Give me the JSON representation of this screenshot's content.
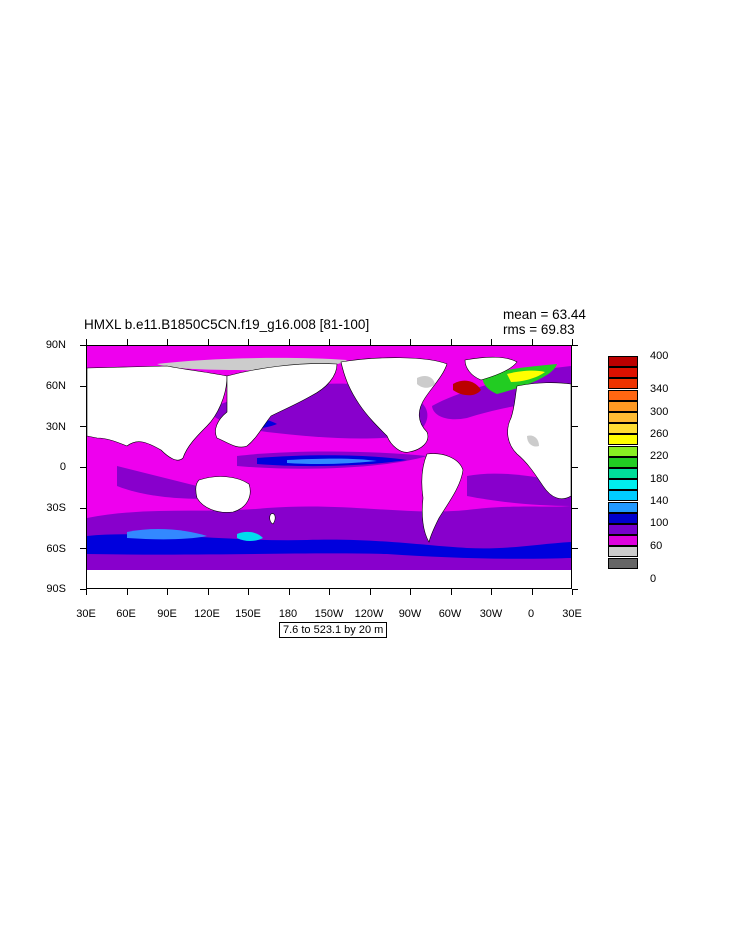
{
  "map": {
    "title": "HMXL b.e11.B1850C5CN.f19_g16.008 [81-100]",
    "mean_text": "mean = 63.44",
    "rms_text": "rms = 69.83",
    "lat_labels": [
      "90N",
      "60N",
      "30N",
      "0",
      "30S",
      "60S",
      "90S"
    ],
    "lon_labels": [
      "30E",
      "60E",
      "90E",
      "120E",
      "150E",
      "180",
      "150W",
      "120W",
      "90W",
      "60W",
      "30W",
      "0",
      "30E"
    ],
    "range_text": "7.6 to 523.1 by 20 m",
    "colors": {
      "land": "#ffffff",
      "c0": "#666666",
      "c20": "#cccccc",
      "c40": "#ee00ee",
      "c60": "#8800cc",
      "c80": "#0000dd",
      "c100": "#3388ff",
      "c120": "#00ddee"
    }
  },
  "colorbar": {
    "labels": [
      "400",
      "340",
      "300",
      "260",
      "220",
      "180",
      "140",
      "100",
      "60",
      "0"
    ],
    "colors": [
      "#bb0000",
      "#dd1100",
      "#ee3300",
      "#ff6611",
      "#ff9922",
      "#ffbb33",
      "#ffdd33",
      "#ffff00",
      "#88ee22",
      "#22cc22",
      "#00dd99",
      "#00eeee",
      "#00ccff",
      "#2299ff",
      "#0000cc",
      "#7700cc",
      "#dd00dd",
      "#cccccc",
      "#666666"
    ]
  }
}
